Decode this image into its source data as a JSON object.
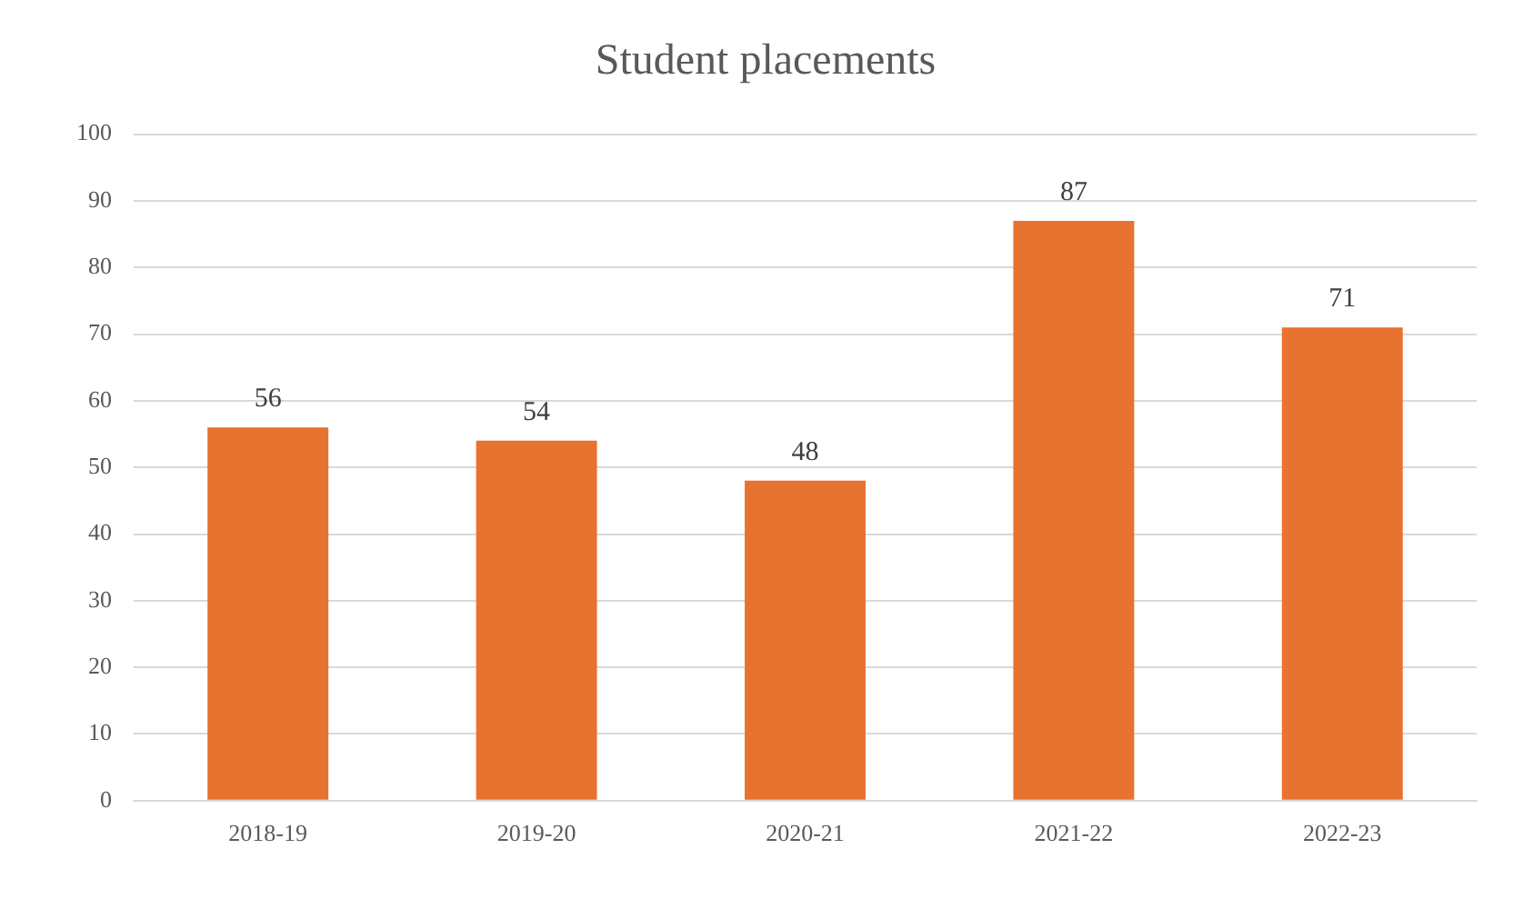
{
  "chart_data": {
    "type": "bar",
    "title": "Student placements",
    "categories": [
      "2018-19",
      "2019-20",
      "2020-21",
      "2021-22",
      "2022-23"
    ],
    "values": [
      56,
      54,
      48,
      87,
      71
    ],
    "color": "#e8722f",
    "ylim": [
      0,
      100
    ],
    "yticks": [
      0,
      10,
      20,
      30,
      40,
      50,
      60,
      70,
      80,
      90,
      100
    ],
    "grid": "y",
    "data_labels": true,
    "legend": false
  }
}
